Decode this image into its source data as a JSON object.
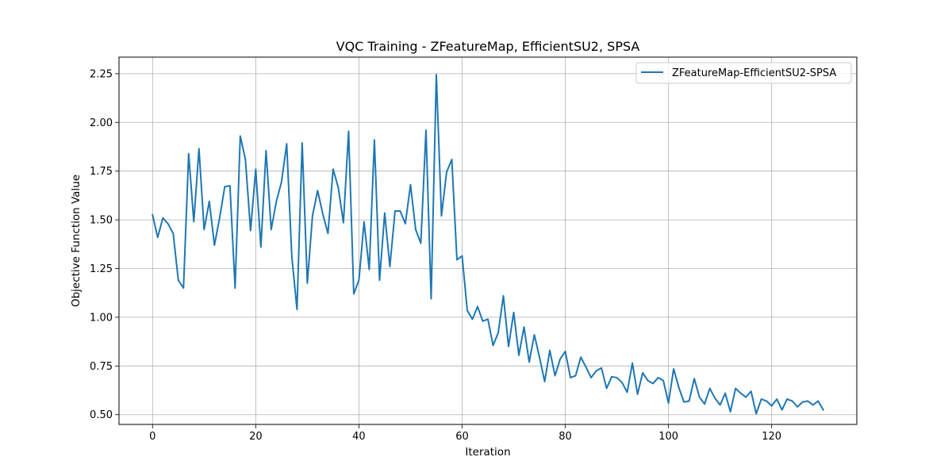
{
  "chart_data": {
    "type": "line",
    "title": "VQC Training - ZFeatureMap, EfficientSU2, SPSA",
    "xlabel": "Iteration",
    "ylabel": "Objective Function Value",
    "xlim": [
      -6.5,
      136.5
    ],
    "ylim": [
      0.45,
      2.335
    ],
    "xticks": [
      "0",
      "20",
      "40",
      "60",
      "80",
      "100",
      "120"
    ],
    "xtick_values": [
      0,
      20,
      40,
      60,
      80,
      100,
      120
    ],
    "yticks": [
      "0.50",
      "0.75",
      "1.00",
      "1.25",
      "1.50",
      "1.75",
      "2.00",
      "2.25"
    ],
    "ytick_values": [
      0.5,
      0.75,
      1.0,
      1.25,
      1.5,
      1.75,
      2.0,
      2.25
    ],
    "grid": true,
    "legend_position": "top-right",
    "series": [
      {
        "name": "ZFeatureMap-EfficientSU2-SPSA",
        "color": "#1f77b4",
        "x": [
          0,
          1,
          2,
          3,
          4,
          5,
          6,
          7,
          8,
          9,
          10,
          11,
          12,
          13,
          14,
          15,
          16,
          17,
          18,
          19,
          20,
          21,
          22,
          23,
          24,
          25,
          26,
          27,
          28,
          29,
          30,
          31,
          32,
          33,
          34,
          35,
          36,
          37,
          38,
          39,
          40,
          41,
          42,
          43,
          44,
          45,
          46,
          47,
          48,
          49,
          50,
          51,
          52,
          53,
          54,
          55,
          56,
          57,
          58,
          59,
          60,
          61,
          62,
          63,
          64,
          65,
          66,
          67,
          68,
          69,
          70,
          71,
          72,
          73,
          74,
          75,
          76,
          77,
          78,
          79,
          80,
          81,
          82,
          83,
          84,
          85,
          86,
          87,
          88,
          89,
          90,
          91,
          92,
          93,
          94,
          95,
          96,
          97,
          98,
          99,
          100,
          101,
          102,
          103,
          104,
          105,
          106,
          107,
          108,
          109,
          110,
          111,
          112,
          113,
          114,
          115,
          116,
          117,
          118,
          119,
          120,
          121,
          122,
          123,
          124,
          125,
          126,
          127,
          128,
          129,
          130
        ],
        "values": [
          1.525,
          1.41,
          1.51,
          1.48,
          1.43,
          1.19,
          1.15,
          1.84,
          1.49,
          1.865,
          1.45,
          1.595,
          1.37,
          1.51,
          1.67,
          1.675,
          1.15,
          1.93,
          1.81,
          1.445,
          1.76,
          1.36,
          1.855,
          1.45,
          1.595,
          1.695,
          1.89,
          1.31,
          1.04,
          1.895,
          1.175,
          1.52,
          1.65,
          1.53,
          1.43,
          1.76,
          1.665,
          1.485,
          1.955,
          1.12,
          1.19,
          1.49,
          1.245,
          1.91,
          1.19,
          1.535,
          1.26,
          1.545,
          1.545,
          1.48,
          1.68,
          1.45,
          1.38,
          1.96,
          1.095,
          2.245,
          1.52,
          1.745,
          1.81,
          1.295,
          1.315,
          1.035,
          0.99,
          1.055,
          0.98,
          0.99,
          0.855,
          0.92,
          1.11,
          0.85,
          1.025,
          0.805,
          0.95,
          0.77,
          0.91,
          0.795,
          0.67,
          0.83,
          0.7,
          0.785,
          0.825,
          0.69,
          0.7,
          0.795,
          0.745,
          0.69,
          0.725,
          0.74,
          0.635,
          0.695,
          0.69,
          0.665,
          0.615,
          0.765,
          0.605,
          0.715,
          0.675,
          0.66,
          0.69,
          0.675,
          0.56,
          0.735,
          0.64,
          0.565,
          0.57,
          0.685,
          0.59,
          0.555,
          0.635,
          0.585,
          0.55,
          0.61,
          0.515,
          0.635,
          0.61,
          0.59,
          0.62,
          0.505,
          0.58,
          0.57,
          0.545,
          0.58,
          0.525,
          0.58,
          0.57,
          0.54,
          0.565,
          0.57,
          0.55,
          0.57,
          0.525
        ]
      }
    ]
  }
}
